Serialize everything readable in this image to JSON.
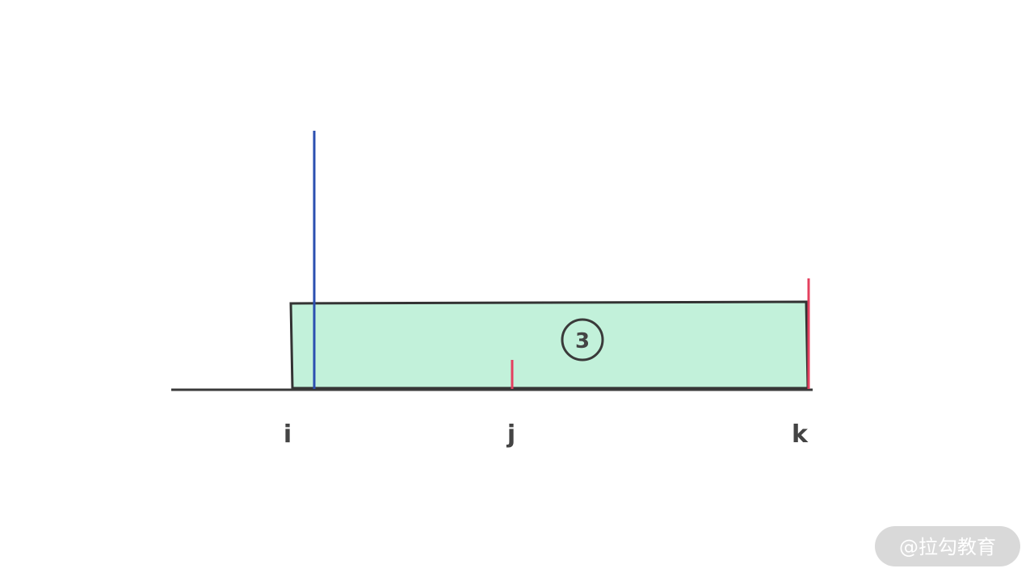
{
  "labels": {
    "i": "i",
    "j": "j",
    "k": "k"
  },
  "region": {
    "number": "3"
  },
  "watermark": "@拉勾教育"
}
